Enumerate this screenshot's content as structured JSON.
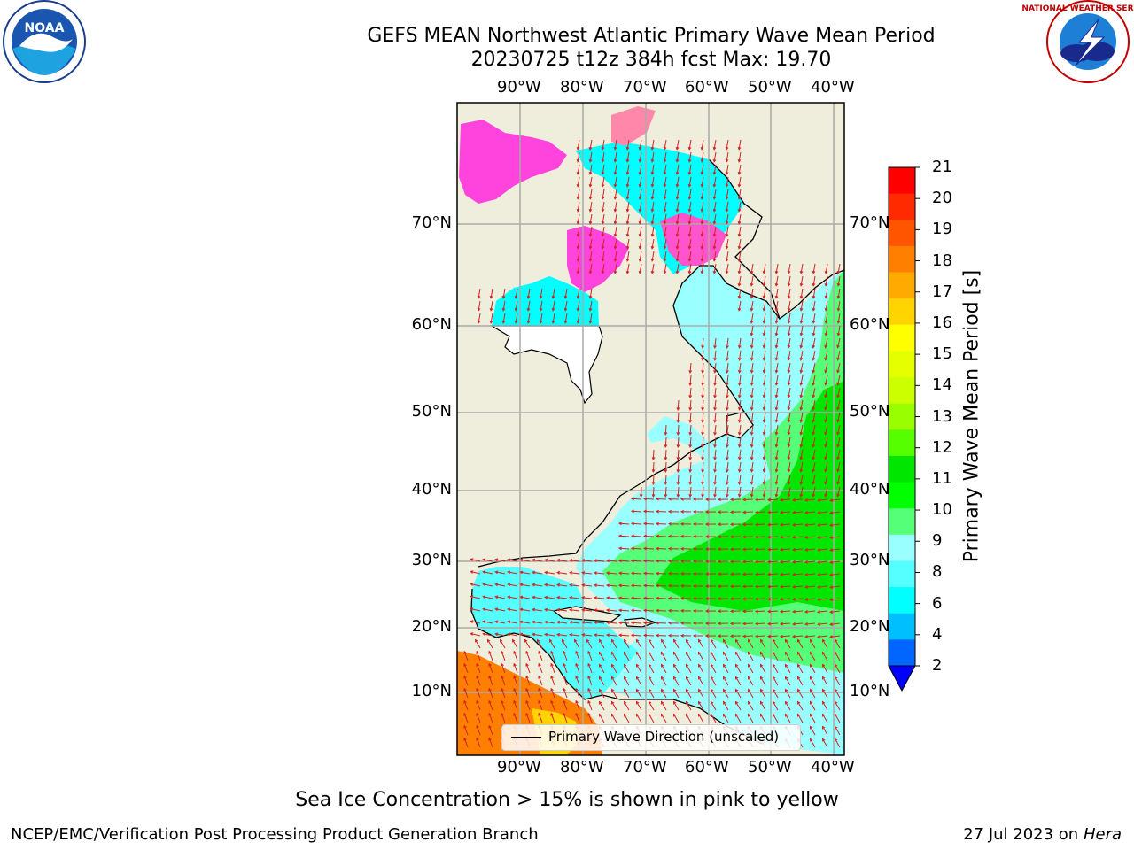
{
  "title_line1": "GEFS MEAN Northwest Atlantic Primary Wave Mean Period",
  "title_line2": "20230725 t12z 384h fcst   Max: 19.70",
  "lon_labels": [
    "90°W",
    "80°W",
    "70°W",
    "60°W",
    "50°W",
    "40°W"
  ],
  "lat_labels": [
    "70°N",
    "60°N",
    "50°N",
    "40°N",
    "30°N",
    "20°N",
    "10°N"
  ],
  "legend": {
    "label": "Primary Wave Direction (unscaled)"
  },
  "colorbar": {
    "title": "Primary Wave Mean Period [s]",
    "ticks": [
      "21",
      "20",
      "19",
      "18",
      "17",
      "16",
      "15",
      "14",
      "13",
      "12",
      "11",
      "10",
      "9",
      "8",
      "6",
      "4",
      "2"
    ],
    "colors": [
      "#ff0000",
      "#ff2a00",
      "#ff5500",
      "#ff8000",
      "#ffaa00",
      "#ffd400",
      "#ffff00",
      "#e6ff00",
      "#ccff00",
      "#99ff00",
      "#55ff00",
      "#00e600",
      "#00ff00",
      "#55ff77",
      "#99ffff",
      "#55ffff",
      "#00ffff",
      "#00bfff",
      "#0066ff"
    ],
    "under_color": "#0000ff"
  },
  "caption": "Sea Ice Concentration > 15% is shown in pink to yellow",
  "footer_left": "NCEP/EMC/Verification Post Processing Product Generation Branch",
  "footer_right_date": "27 Jul 2023 on ",
  "footer_right_machine": "Hera",
  "logo_left": "NOAA",
  "logo_right": "NATIONAL WEATHER SERVICE"
}
